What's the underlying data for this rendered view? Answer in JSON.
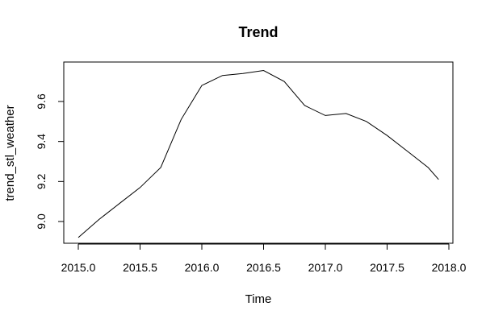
{
  "chart_data": {
    "type": "line",
    "title": "Trend",
    "xlabel": "Time",
    "ylabel": "trend_stl_weather",
    "xlim": [
      2015.0,
      2018.0
    ],
    "ylim": [
      8.9,
      9.8
    ],
    "xticks": [
      2015.0,
      2015.5,
      2016.0,
      2016.5,
      2017.0,
      2017.5,
      2018.0
    ],
    "xtick_labels": [
      "2015.0",
      "2015.5",
      "2016.0",
      "2016.5",
      "2017.0",
      "2017.5",
      "2018.0"
    ],
    "yticks": [
      9.0,
      9.2,
      9.4,
      9.6
    ],
    "ytick_labels": [
      "9.0",
      "9.2",
      "9.4",
      "9.6"
    ],
    "grid": false,
    "series": [
      {
        "x": [
          2015.0,
          2015.167,
          2015.333,
          2015.5,
          2015.667,
          2015.833,
          2016.0,
          2016.167,
          2016.333,
          2016.5,
          2016.667,
          2016.833,
          2017.0,
          2017.167,
          2017.333,
          2017.5,
          2017.667,
          2017.833,
          2017.917
        ],
        "values": [
          8.92,
          9.01,
          9.09,
          9.17,
          9.27,
          9.51,
          9.68,
          9.73,
          9.74,
          9.755,
          9.7,
          9.58,
          9.53,
          9.54,
          9.5,
          9.43,
          9.35,
          9.27,
          9.21
        ]
      }
    ],
    "colors": {
      "line": "#000000",
      "axis": "#000000"
    }
  }
}
